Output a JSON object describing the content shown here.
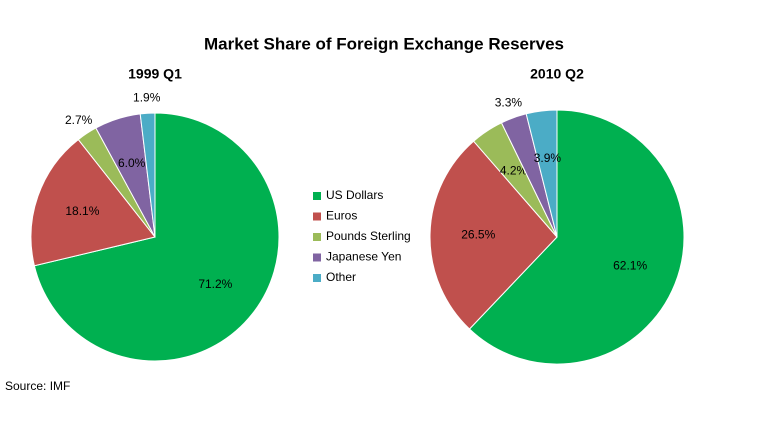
{
  "title": "Market Share of Foreign Exchange Reserves",
  "source": "Source: IMF",
  "chart_data": [
    {
      "type": "pie",
      "title": "1999 Q1",
      "categories": [
        "US Dollars",
        "Euros",
        "Pounds Sterling",
        "Japanese Yen",
        "Other"
      ],
      "values": [
        71.2,
        18.1,
        2.7,
        6.0,
        1.9
      ],
      "value_labels": [
        "71.2%",
        "18.1%",
        "2.7%",
        "6.0%",
        "1.9%"
      ],
      "colors": [
        "#00b050",
        "#c0504d",
        "#9bbb59",
        "#8064a2",
        "#4bacc6"
      ]
    },
    {
      "type": "pie",
      "title": "2010 Q2",
      "categories": [
        "US Dollars",
        "Euros",
        "Pounds Sterling",
        "Japanese Yen",
        "Other"
      ],
      "values": [
        62.1,
        26.5,
        4.2,
        3.3,
        3.9
      ],
      "value_labels": [
        "62.1%",
        "26.5%",
        "4.2%",
        "3.3%",
        "3.9%"
      ],
      "colors": [
        "#00b050",
        "#c0504d",
        "#9bbb59",
        "#8064a2",
        "#4bacc6"
      ]
    }
  ]
}
